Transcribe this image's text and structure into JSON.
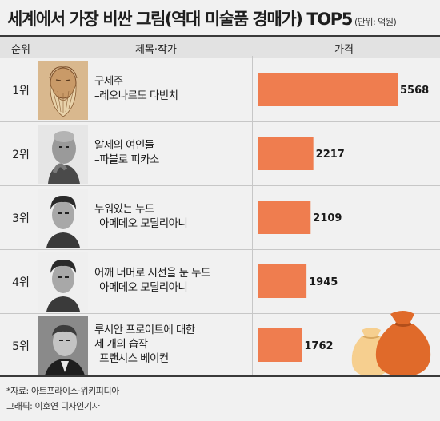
{
  "title": "세계에서 가장 비싼 그림(역대 미술품 경매가) TOP5",
  "unit": "(단위: 억원)",
  "headers": {
    "rank": "순위",
    "work": "제목·작가",
    "price": "가격"
  },
  "rows": [
    {
      "rank": "1위",
      "lines": [
        "구세주",
        "–레오나르도 다빈치"
      ],
      "price": "5568",
      "artist_icon": "leonardo-portrait-icon"
    },
    {
      "rank": "2위",
      "lines": [
        "알제의 여인들",
        "–파블로 피카소"
      ],
      "price": "2217",
      "artist_icon": "picasso-portrait-icon"
    },
    {
      "rank": "3위",
      "lines": [
        "누워있는 누드",
        "–아메데오 모딜리아니"
      ],
      "price": "2109",
      "artist_icon": "modigliani-portrait-icon"
    },
    {
      "rank": "4위",
      "lines": [
        "어깨 너머로 시선을 둔 누드",
        "–아메데오 모딜리아니"
      ],
      "price": "1945",
      "artist_icon": "modigliani-portrait-icon"
    },
    {
      "rank": "5위",
      "lines": [
        "루시안 프로이트에 대한",
        "세 개의 습작",
        "–프랜시스 베이컨"
      ],
      "price": "1762",
      "artist_icon": "bacon-portrait-icon"
    }
  ],
  "footer": {
    "source": "*자료: 아트프라이스·위키피디아",
    "credit": "그래픽: 이호연 디자인기자"
  },
  "colors": {
    "bar": "#ef7d4f",
    "bag_light": "#f6cf8f",
    "bag_dark": "#e06a2a"
  },
  "chart_data": {
    "type": "bar",
    "orientation": "horizontal",
    "categories": [
      "구세주",
      "알제의 여인들",
      "누워있는 누드",
      "어깨 너머로 시선을 둔 누드",
      "루시안 프로이트에 대한 세 개의 습작"
    ],
    "values": [
      5568,
      2217,
      2109,
      1945,
      1762
    ],
    "title": "세계에서 가장 비싼 그림(역대 미술품 경매가) TOP5",
    "unit": "억원",
    "xlim": [
      0,
      5568
    ],
    "grid": false,
    "legend": "none"
  }
}
